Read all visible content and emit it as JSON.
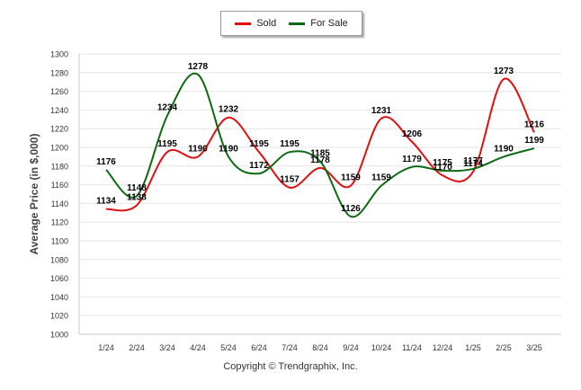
{
  "chart_data": {
    "type": "line",
    "categories": [
      "1/24",
      "2/24",
      "3/24",
      "4/24",
      "5/24",
      "6/24",
      "7/24",
      "8/24",
      "9/24",
      "10/24",
      "11/24",
      "12/24",
      "1/25",
      "2/25",
      "3/25"
    ],
    "series": [
      {
        "name": "Sold",
        "color": "#e01010",
        "values": [
          1134,
          1138,
          1195,
          1190,
          1232,
          1195,
          1157,
          1178,
          1159,
          1231,
          1206,
          1170,
          1174,
          1273,
          1216
        ]
      },
      {
        "name": "For Sale",
        "color": "#0b6a12",
        "values": [
          1176,
          1148,
          1234,
          1278,
          1190,
          1172,
          1195,
          1185,
          1126,
          1159,
          1179,
          1175,
          1177,
          1190,
          1199
        ]
      }
    ],
    "ylabel": "Average Price (in $,000)",
    "xlabel": "",
    "ylim": [
      1000,
      1300
    ],
    "yticks": [
      1000,
      1020,
      1040,
      1060,
      1080,
      1100,
      1120,
      1140,
      1160,
      1180,
      1200,
      1220,
      1240,
      1260,
      1280,
      1300
    ],
    "grid": true,
    "legend_position": "top-center"
  },
  "legend": {
    "sold_label": "Sold",
    "for_sale_label": "For Sale"
  },
  "footer": {
    "copyright": "Copyright © Trendgraphix, Inc."
  }
}
